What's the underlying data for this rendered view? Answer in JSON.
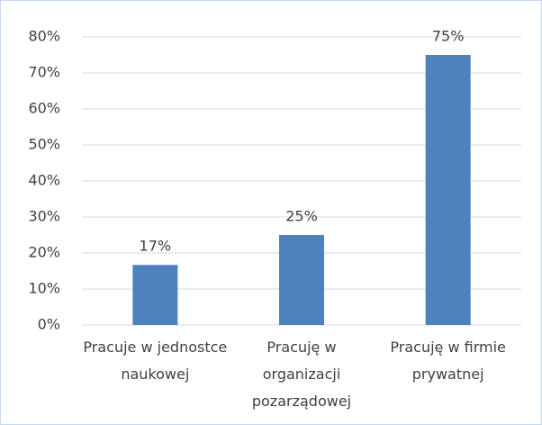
{
  "chart_data": {
    "type": "bar",
    "categories": [
      "Pracuje w jednostce naukowej",
      "Pracuję w organizacji pozarządowej",
      "Pracuję w firmie prywatnej"
    ],
    "values": [
      16.7,
      25,
      75
    ],
    "value_labels": [
      "17%",
      "25%",
      "75%"
    ],
    "color": "#4f81bd",
    "ylim": [
      0,
      80
    ],
    "yticks": [
      {
        "value": 0,
        "label": "0%"
      },
      {
        "value": 10,
        "label": "10%"
      },
      {
        "value": 20,
        "label": "20%"
      },
      {
        "value": 30,
        "label": "30%"
      },
      {
        "value": 40,
        "label": "40%"
      },
      {
        "value": 50,
        "label": "50%"
      },
      {
        "value": 60,
        "label": "60%"
      },
      {
        "value": 70,
        "label": "70%"
      },
      {
        "value": 80,
        "label": "80%"
      }
    ],
    "grid": true
  }
}
